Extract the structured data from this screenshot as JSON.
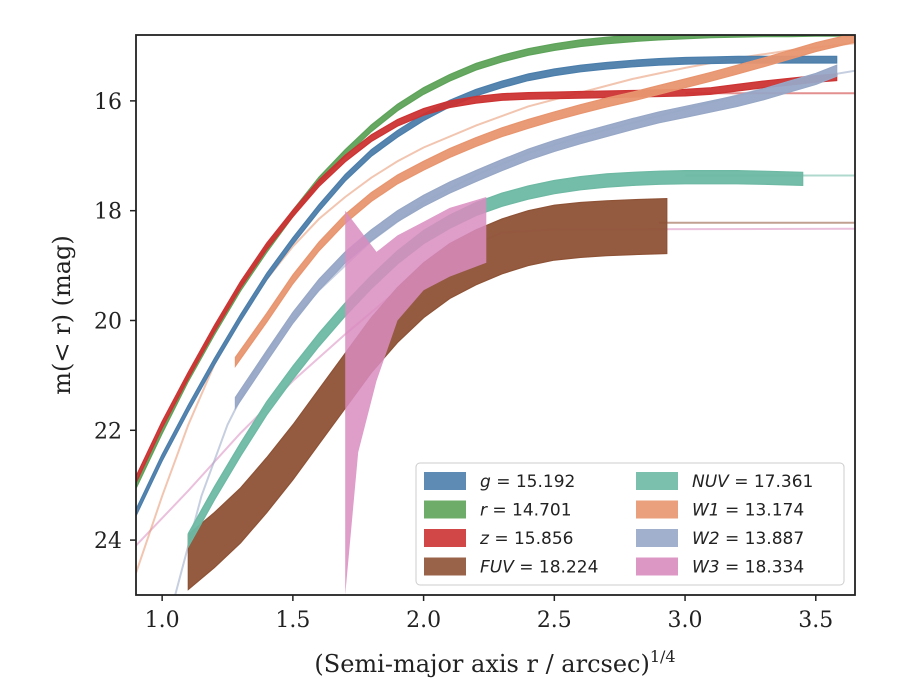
{
  "chart_data": {
    "type": "line",
    "xlabel": "(Semi-major axis r / arcsec)",
    "xlabel_sup": "1/4",
    "ylabel": "m(< r) (mag)",
    "xlim": [
      0.9,
      3.65
    ],
    "ylim": [
      25.0,
      14.8
    ],
    "y_inverted": true,
    "grid": false,
    "legend_position": "lower-right",
    "x_ticks": [
      1.0,
      1.5,
      2.0,
      2.5,
      3.0,
      3.5
    ],
    "x_tick_labels": [
      "1.0",
      "1.5",
      "2.0",
      "2.5",
      "3.0",
      "3.5"
    ],
    "y_ticks": [
      16,
      18,
      20,
      22,
      24
    ],
    "y_tick_labels": [
      "16",
      "18",
      "20",
      "22",
      "24"
    ],
    "legend_columns": [
      [
        {
          "band": "g",
          "text": "= 15.192"
        },
        {
          "band": "r",
          "text": "= 14.701"
        },
        {
          "band": "z",
          "text": "= 15.856"
        },
        {
          "band": "FUV",
          "text": "= 18.224"
        }
      ],
      [
        {
          "band": "NUV",
          "text": "= 17.361"
        },
        {
          "band": "W1",
          "text": "= 13.174"
        },
        {
          "band": "W2",
          "text": "= 13.887"
        },
        {
          "band": "W3",
          "text": "= 18.334"
        }
      ]
    ],
    "series": [
      {
        "name": "g",
        "total_mag": 15.192,
        "color": "#4c7eab",
        "band_width": 0.06,
        "x": [
          0.9,
          1.0,
          1.1,
          1.2,
          1.3,
          1.4,
          1.5,
          1.6,
          1.7,
          1.8,
          1.9,
          2.0,
          2.1,
          2.2,
          2.3,
          2.4,
          2.5,
          2.6,
          2.7,
          2.8,
          2.9,
          3.0,
          3.1,
          3.2,
          3.3,
          3.4,
          3.58
        ],
        "y": [
          23.5,
          22.5,
          21.6,
          20.75,
          19.95,
          19.2,
          18.55,
          17.95,
          17.4,
          16.95,
          16.6,
          16.3,
          16.05,
          15.85,
          15.7,
          15.57,
          15.48,
          15.41,
          15.36,
          15.32,
          15.29,
          15.27,
          15.26,
          15.25,
          15.25,
          15.25,
          15.25
        ]
      },
      {
        "name": "r",
        "total_mag": 14.701,
        "color": "#5ea35a",
        "band_width": 0.06,
        "x": [
          0.9,
          1.0,
          1.1,
          1.2,
          1.3,
          1.4,
          1.5,
          1.6,
          1.7,
          1.8,
          1.9,
          2.0,
          2.1,
          2.2,
          2.3,
          2.4,
          2.5,
          2.6,
          2.7,
          2.8,
          2.9,
          3.0,
          3.1,
          3.2,
          3.3,
          3.4,
          3.5,
          3.65
        ],
        "y": [
          23.0,
          22.0,
          21.05,
          20.2,
          19.4,
          18.7,
          18.05,
          17.45,
          16.95,
          16.5,
          16.12,
          15.82,
          15.58,
          15.38,
          15.23,
          15.11,
          15.02,
          14.95,
          14.9,
          14.86,
          14.83,
          14.81,
          14.79,
          14.78,
          14.77,
          14.77,
          14.76,
          14.76
        ]
      },
      {
        "name": "z",
        "total_mag": 15.856,
        "color": "#cc3333",
        "band_width": 0.06,
        "x": [
          0.9,
          1.0,
          1.1,
          1.2,
          1.3,
          1.4,
          1.5,
          1.6,
          1.7,
          1.8,
          1.9,
          2.0,
          2.1,
          2.2,
          2.3,
          2.4,
          2.5,
          2.6,
          2.7,
          2.8,
          2.9,
          3.0,
          3.1,
          3.2,
          3.3,
          3.4,
          3.5,
          3.58
        ],
        "y": [
          22.9,
          21.9,
          21.0,
          20.15,
          19.35,
          18.65,
          18.05,
          17.5,
          17.05,
          16.68,
          16.4,
          16.2,
          16.06,
          15.98,
          15.93,
          15.91,
          15.9,
          15.89,
          15.88,
          15.87,
          15.86,
          15.85,
          15.82,
          15.76,
          15.7,
          15.65,
          15.6,
          15.57
        ]
      },
      {
        "name": "FUV",
        "total_mag": 18.224,
        "color": "#8e5236",
        "band_width": 0.5,
        "x": [
          1.1,
          1.2,
          1.3,
          1.4,
          1.5,
          1.6,
          1.7,
          1.8,
          1.9,
          2.0,
          2.1,
          2.2,
          2.3,
          2.4,
          2.5,
          2.6,
          2.7,
          2.8,
          2.93
        ],
        "y": [
          24.4,
          24.0,
          23.55,
          23.0,
          22.4,
          21.75,
          21.1,
          20.45,
          19.9,
          19.45,
          19.1,
          18.85,
          18.65,
          18.5,
          18.4,
          18.35,
          18.32,
          18.3,
          18.28
        ]
      },
      {
        "name": "NUV",
        "total_mag": 17.361,
        "color": "#6db9a3",
        "band_width": 0.12,
        "x": [
          1.1,
          1.2,
          1.3,
          1.4,
          1.5,
          1.6,
          1.7,
          1.8,
          1.9,
          2.0,
          2.1,
          2.2,
          2.3,
          2.4,
          2.5,
          2.6,
          2.7,
          2.8,
          2.9,
          3.0,
          3.1,
          3.2,
          3.3,
          3.45
        ],
        "y": [
          24.0,
          23.15,
          22.35,
          21.6,
          20.95,
          20.35,
          19.8,
          19.3,
          18.85,
          18.48,
          18.2,
          17.97,
          17.8,
          17.67,
          17.57,
          17.5,
          17.45,
          17.42,
          17.4,
          17.39,
          17.39,
          17.39,
          17.4,
          17.42
        ]
      },
      {
        "name": "W1",
        "total_mag": 13.174,
        "color": "#e8956f",
        "band_width": 0.08,
        "x": [
          1.28,
          1.4,
          1.5,
          1.6,
          1.7,
          1.8,
          1.9,
          2.0,
          2.1,
          2.2,
          2.3,
          2.4,
          2.5,
          2.6,
          2.7,
          2.8,
          2.9,
          3.0,
          3.1,
          3.2,
          3.3,
          3.4,
          3.5,
          3.65
        ],
        "y": [
          20.75,
          19.95,
          19.25,
          18.65,
          18.15,
          17.75,
          17.43,
          17.18,
          16.95,
          16.75,
          16.57,
          16.42,
          16.28,
          16.15,
          16.03,
          15.92,
          15.8,
          15.68,
          15.56,
          15.43,
          15.3,
          15.16,
          15.02,
          14.85
        ]
      },
      {
        "name": "W2",
        "total_mag": 13.887,
        "color": "#97a7c6",
        "band_width": 0.1,
        "x": [
          1.28,
          1.4,
          1.5,
          1.6,
          1.7,
          1.8,
          1.9,
          2.0,
          2.1,
          2.2,
          2.3,
          2.4,
          2.5,
          2.6,
          2.7,
          2.8,
          2.9,
          3.0,
          3.1,
          3.2,
          3.3,
          3.4,
          3.5,
          3.58
        ],
        "y": [
          21.5,
          20.65,
          19.95,
          19.35,
          18.85,
          18.45,
          18.1,
          17.82,
          17.58,
          17.37,
          17.17,
          16.98,
          16.82,
          16.68,
          16.55,
          16.42,
          16.3,
          16.2,
          16.1,
          16.0,
          15.88,
          15.74,
          15.6,
          15.45
        ]
      },
      {
        "name": "W3",
        "total_mag": 18.334,
        "color": "#d98cbf",
        "band_width": 0.0,
        "x": [
          1.7,
          1.7,
          1.82,
          1.9,
          2.0,
          2.1,
          2.24,
          2.24,
          2.1,
          2.0,
          1.9,
          1.82,
          1.75,
          1.7
        ],
        "y": [
          25.0,
          18.0,
          18.75,
          18.45,
          18.2,
          17.95,
          17.75,
          18.95,
          19.2,
          19.45,
          20.0,
          21.1,
          22.4,
          25.0
        ],
        "extent_x": [
          1.7,
          2.24
        ]
      }
    ],
    "faint_lines": [
      {
        "color": "#cc3333",
        "x": [
          3.0,
          3.65
        ],
        "y": [
          15.86,
          15.86
        ]
      },
      {
        "color": "#6db9a3",
        "x": [
          3.0,
          3.65
        ],
        "y": [
          17.36,
          17.36
        ]
      },
      {
        "color": "#8e5236",
        "x": [
          2.9,
          3.65
        ],
        "y": [
          18.22,
          18.22
        ]
      },
      {
        "color": "#d98cbf",
        "x": [
          0.9,
          1.1,
          1.3,
          1.5,
          1.7,
          1.9,
          2.1,
          2.3,
          2.5,
          3.65
        ],
        "y": [
          24.1,
          23.1,
          22.05,
          21.1,
          20.25,
          19.45,
          18.8,
          18.4,
          18.34,
          18.33
        ]
      },
      {
        "color": "#e8956f",
        "x": [
          0.9,
          1.0,
          1.1,
          1.2,
          1.3,
          1.4,
          1.5,
          1.6,
          1.7,
          1.8,
          1.9,
          2.0,
          2.2,
          2.4,
          2.6,
          2.8,
          3.0,
          3.2,
          3.4,
          3.65
        ],
        "y": [
          24.6,
          23.2,
          21.9,
          20.8,
          19.95,
          19.25,
          18.65,
          18.15,
          17.75,
          17.4,
          17.1,
          16.85,
          16.45,
          16.1,
          15.85,
          15.6,
          15.4,
          15.22,
          15.08,
          14.95
        ]
      },
      {
        "color": "#97a7c6",
        "x": [
          1.05,
          1.15,
          1.25,
          1.35,
          1.45,
          1.6,
          1.8,
          2.0,
          2.2,
          2.4,
          2.6,
          2.8,
          3.0,
          3.2,
          3.4,
          3.65
        ],
        "y": [
          25.0,
          23.2,
          21.9,
          20.95,
          20.25,
          19.45,
          18.55,
          17.85,
          17.35,
          16.95,
          16.65,
          16.4,
          16.15,
          15.9,
          15.65,
          15.45
        ]
      }
    ]
  }
}
